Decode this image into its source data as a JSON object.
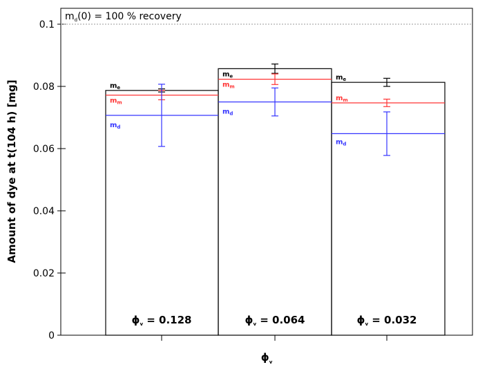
{
  "chart_data": {
    "type": "bar",
    "ylabel": "Amount of dye at t(104 h) [mg]",
    "xlabel": "ϕv",
    "ylim": [
      0,
      0.1
    ],
    "yticks": [
      "0",
      "0.02",
      "0.04",
      "0.06",
      "0.08",
      "0.1"
    ],
    "reference_line": {
      "value": 0.1,
      "label": "md(0) = 100 % recovery"
    },
    "grid": false,
    "categories": [
      "ϕv = 0.128",
      "ϕv = 0.064",
      "ϕv = 0.032"
    ],
    "series": [
      {
        "key": "me",
        "label": "me",
        "color": "#000000",
        "values": [
          0.0787,
          0.0857,
          0.0813
        ],
        "errors": [
          0.0005,
          0.0015,
          0.0013
        ]
      },
      {
        "key": "mm",
        "label": "mm",
        "color": "#ff3333",
        "values": [
          0.0772,
          0.0823,
          0.0747
        ],
        "errors": [
          0.0015,
          0.0017,
          0.0012
        ]
      },
      {
        "key": "md",
        "label": "md",
        "color": "#3333ff",
        "values": [
          0.0707,
          0.075,
          0.0648
        ],
        "errors": [
          0.01,
          0.0045,
          0.007
        ]
      }
    ]
  }
}
